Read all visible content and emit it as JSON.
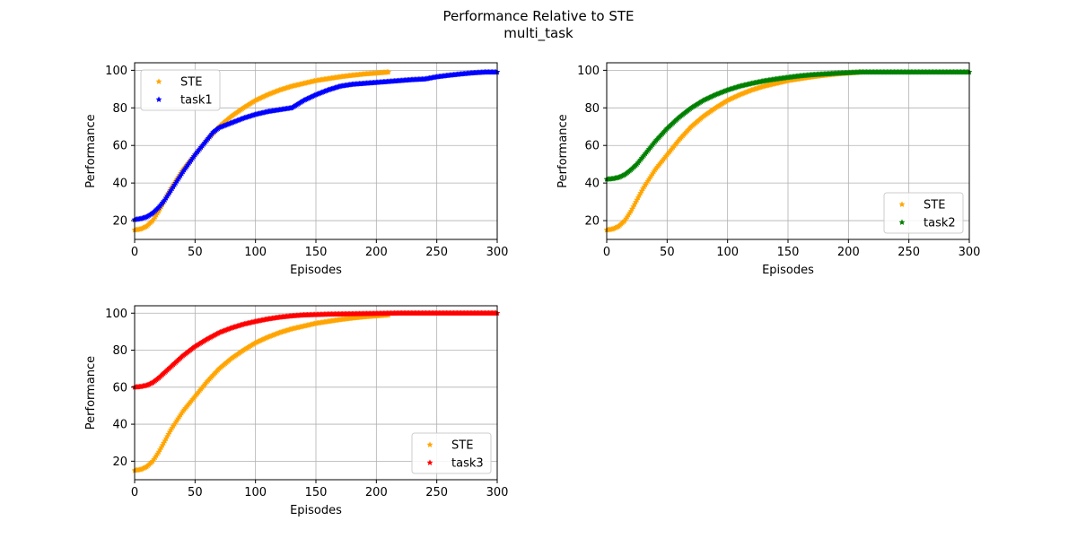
{
  "figure": {
    "title": "Performance Relative to STE",
    "subtitle": "multi_task"
  },
  "chart_data": [
    {
      "type": "scatter",
      "xlabel": "Episodes",
      "ylabel": "Performance",
      "xlim": [
        0,
        300
      ],
      "ylim": [
        10,
        104
      ],
      "xticks": [
        0,
        50,
        100,
        150,
        200,
        250,
        300
      ],
      "yticks": [
        20,
        40,
        60,
        80,
        100
      ],
      "grid": true,
      "legend": "top-left",
      "series": [
        {
          "name": "STE",
          "color": "#ffa500",
          "marker": "star",
          "x": [
            0,
            5,
            10,
            15,
            20,
            25,
            30,
            35,
            40,
            45,
            50,
            60,
            70,
            80,
            90,
            100,
            110,
            120,
            130,
            140,
            150,
            160,
            170,
            180,
            190,
            200,
            210
          ],
          "y": [
            15,
            15.5,
            17,
            20,
            25,
            31,
            37,
            42,
            47,
            51,
            55,
            63,
            70,
            75.5,
            80,
            84,
            87,
            89.5,
            91.5,
            93,
            94.5,
            95.5,
            96.5,
            97.3,
            98,
            98.5,
            99
          ]
        },
        {
          "name": "task1",
          "color": "#0000ff",
          "marker": "star",
          "x": [
            0,
            5,
            10,
            15,
            20,
            25,
            30,
            35,
            40,
            45,
            50,
            55,
            60,
            65,
            70,
            80,
            90,
            100,
            110,
            120,
            130,
            140,
            150,
            160,
            170,
            180,
            190,
            200,
            210,
            220,
            230,
            240,
            250,
            260,
            270,
            280,
            290,
            300
          ],
          "y": [
            20.5,
            21,
            22,
            24,
            27,
            31,
            36,
            41,
            46,
            50.5,
            55,
            59,
            63,
            67,
            69.5,
            72,
            74.5,
            76.5,
            78,
            79,
            80,
            84,
            87,
            89.5,
            91.5,
            92.5,
            93,
            93.5,
            94,
            94.5,
            95,
            95.3,
            96.5,
            97.3,
            98,
            98.6,
            99,
            99
          ]
        }
      ]
    },
    {
      "type": "scatter",
      "xlabel": "Episodes",
      "ylabel": "Performance",
      "xlim": [
        0,
        300
      ],
      "ylim": [
        10,
        104
      ],
      "xticks": [
        0,
        50,
        100,
        150,
        200,
        250,
        300
      ],
      "yticks": [
        20,
        40,
        60,
        80,
        100
      ],
      "grid": true,
      "legend": "bottom-right",
      "series": [
        {
          "name": "STE",
          "color": "#ffa500",
          "marker": "star",
          "x": [
            0,
            5,
            10,
            15,
            20,
            25,
            30,
            35,
            40,
            45,
            50,
            60,
            70,
            80,
            90,
            100,
            110,
            120,
            130,
            140,
            150,
            160,
            170,
            180,
            190,
            200,
            210
          ],
          "y": [
            15,
            15.5,
            17,
            20,
            25,
            31,
            37,
            42,
            47,
            51,
            55,
            63,
            70,
            75.5,
            80,
            84,
            87,
            89.5,
            91.5,
            93,
            94.5,
            95.5,
            96.5,
            97.3,
            98,
            98.5,
            99
          ]
        },
        {
          "name": "task2",
          "color": "#008000",
          "marker": "star",
          "x": [
            0,
            5,
            10,
            15,
            20,
            25,
            30,
            35,
            40,
            45,
            50,
            60,
            70,
            80,
            90,
            100,
            110,
            120,
            130,
            140,
            150,
            160,
            170,
            180,
            190,
            200,
            210,
            220,
            230,
            240,
            250,
            260,
            270,
            280,
            290,
            300
          ],
          "y": [
            42,
            42.3,
            43,
            44.5,
            47,
            50,
            54,
            58,
            62,
            65.5,
            69,
            75,
            80,
            84,
            87,
            89.5,
            91.5,
            93,
            94.3,
            95.3,
            96.2,
            97,
            97.6,
            98,
            98.4,
            98.7,
            99,
            99,
            99,
            99,
            99,
            99,
            99,
            99,
            99,
            99
          ]
        }
      ]
    },
    {
      "type": "scatter",
      "xlabel": "Episodes",
      "ylabel": "Performance",
      "xlim": [
        0,
        300
      ],
      "ylim": [
        10,
        104
      ],
      "xticks": [
        0,
        50,
        100,
        150,
        200,
        250,
        300
      ],
      "yticks": [
        20,
        40,
        60,
        80,
        100
      ],
      "grid": true,
      "legend": "bottom-right",
      "series": [
        {
          "name": "STE",
          "color": "#ffa500",
          "marker": "star",
          "x": [
            0,
            5,
            10,
            15,
            20,
            25,
            30,
            35,
            40,
            45,
            50,
            60,
            70,
            80,
            90,
            100,
            110,
            120,
            130,
            140,
            150,
            160,
            170,
            180,
            190,
            200,
            210
          ],
          "y": [
            15,
            15.5,
            17,
            20,
            25,
            31,
            37,
            42,
            47,
            51,
            55,
            63,
            70,
            75.5,
            80,
            84,
            87,
            89.5,
            91.5,
            93,
            94.5,
            95.5,
            96.5,
            97.3,
            98,
            98.5,
            99
          ]
        },
        {
          "name": "task3",
          "color": "#ff0000",
          "marker": "star",
          "x": [
            0,
            5,
            10,
            15,
            20,
            25,
            30,
            35,
            40,
            45,
            50,
            60,
            70,
            80,
            90,
            100,
            110,
            120,
            130,
            140,
            150,
            160,
            170,
            180,
            190,
            200,
            210,
            220,
            230,
            240,
            250,
            260,
            270,
            280,
            290,
            300
          ],
          "y": [
            60,
            60.3,
            61,
            62.5,
            65,
            68,
            71,
            74,
            77,
            79.5,
            82,
            86,
            89.5,
            92,
            94,
            95.5,
            96.8,
            97.8,
            98.5,
            99,
            99.2,
            99.4,
            99.5,
            99.6,
            99.7,
            99.8,
            99.9,
            100,
            100,
            100,
            100,
            100,
            100,
            100,
            100,
            100
          ]
        }
      ]
    }
  ]
}
